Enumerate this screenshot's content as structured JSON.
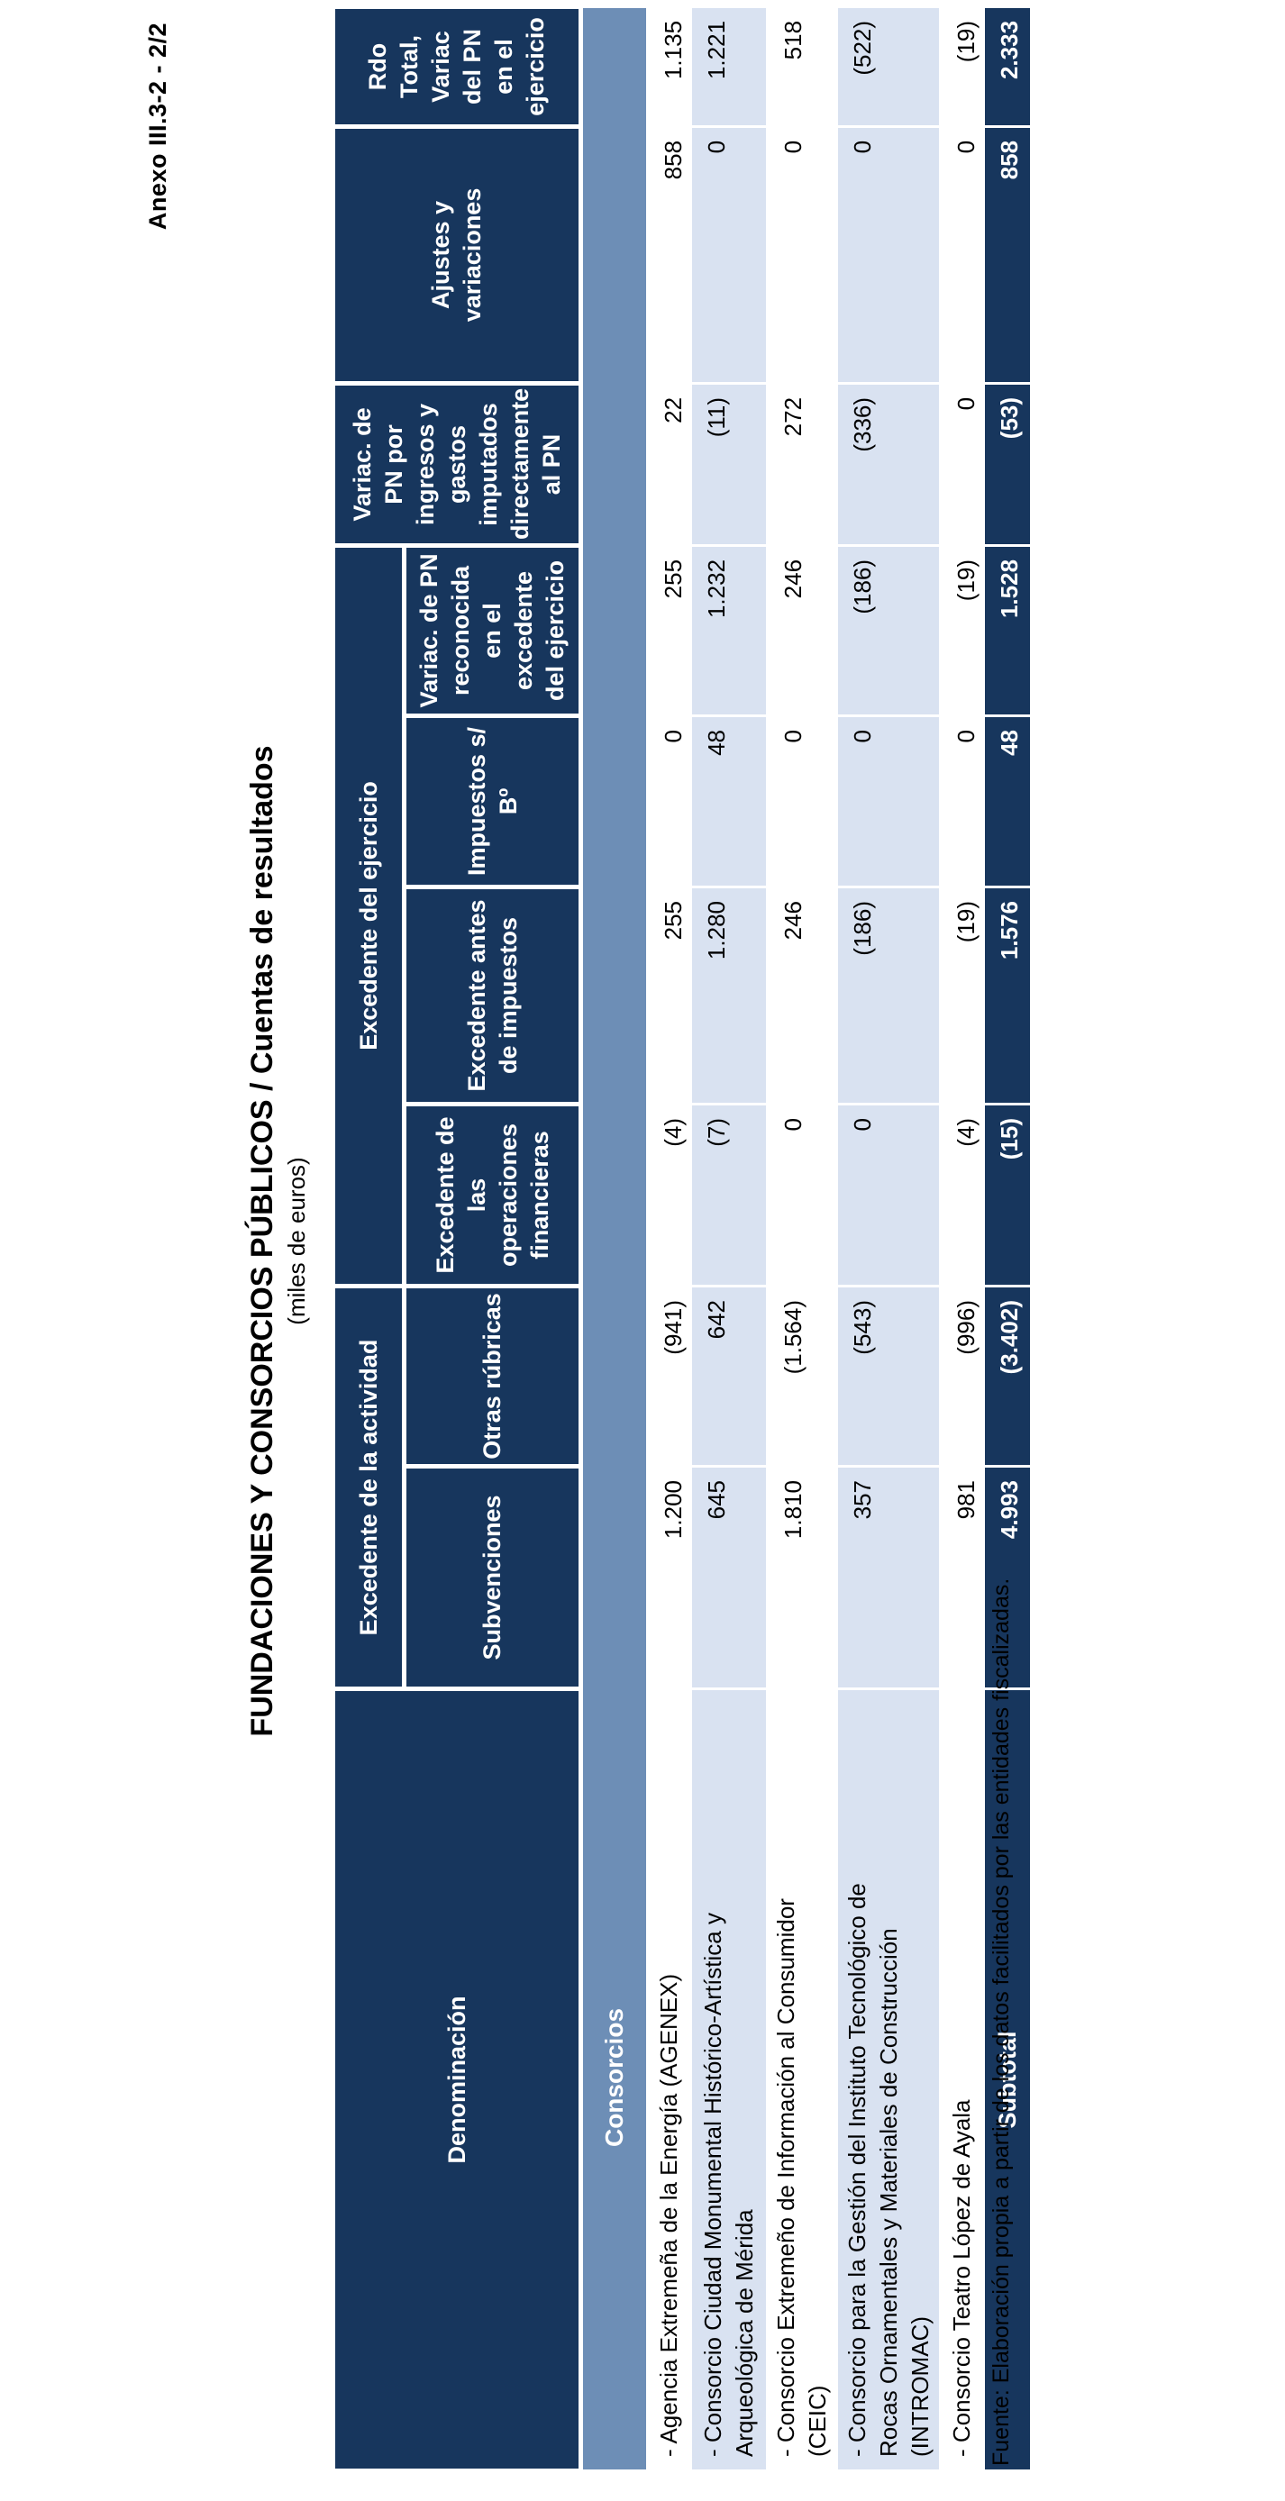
{
  "page": {
    "anexo": "Anexo III.3-2 - 2/2",
    "title": "FUNDACIONES Y CONSORCIOS PÚBLICOS  /  Cuentas de resultados",
    "subtitle": "(miles de euros)",
    "fuente": "Fuente: Elaboración propia a partir de los datos facilitados por las entidades fiscalizadas."
  },
  "colors": {
    "navy": "#17365D",
    "steel": "#6D8EB6",
    "light_row": "#D9E2F1"
  },
  "table": {
    "header": {
      "denominacion": "Denominación",
      "group_actividad": "Excedente de la actividad",
      "group_ejercicio": "Excedente del ejercicio",
      "sub_cols": [
        "Subvenciones",
        "Otras rúbricas",
        "Excedente de las operaciones financieras",
        "Excedente antes de impuestos",
        "Impuestos s/ Bº",
        "Variac. de PN reconocida en el excedente del ejercicio"
      ],
      "single_cols": [
        "Variac. de PN por ingresos y gastos imputados directamente al PN",
        "Ajustes y variaciones",
        "Rdo Total, Variac del PN en el ejercicio"
      ]
    },
    "section_label": "Consorcios",
    "rows": [
      {
        "name": "- Agencia Extremeña de la Energía (AGENEX)",
        "values": [
          "1.200",
          "(941)",
          "(4)",
          "255",
          "0",
          "255",
          "22",
          "858",
          "1.135"
        ],
        "shade": "white",
        "height": 43
      },
      {
        "name": "- Consorcio Ciudad Monumental Histórico-Artística y\nArqueológica de Mérida",
        "values": [
          "645",
          "642",
          "(7)",
          "1.280",
          "48",
          "1.232",
          "(11)",
          "0",
          "1.221"
        ],
        "shade": "light",
        "height": 85
      },
      {
        "name": "- Consorcio Extremeño de Información al Consumidor\n(CEIC)",
        "values": [
          "1.810",
          "(1.564)",
          "0",
          "246",
          "0",
          "246",
          "272",
          "0",
          "518"
        ],
        "shade": "white",
        "height": 65
      },
      {
        "name": "- Consorcio para la Gestión del Instituto Tecnológico de\nRocas Ornamentales y Materiales de Construcción\n(INTROMAC)",
        "values": [
          "357",
          "(543)",
          "0",
          "(186)",
          "0",
          "(186)",
          "(336)",
          "0",
          "(522)"
        ],
        "shade": "light",
        "height": 115
      },
      {
        "name": "- Consorcio Teatro López de Ayala",
        "values": [
          "981",
          "(996)",
          "(4)",
          "(19)",
          "0",
          "(19)",
          "0",
          "0",
          "(19)"
        ],
        "shade": "white",
        "height": 40
      }
    ],
    "subtotal": {
      "label": "Subtotal",
      "values": [
        "4.993",
        "(3.402)",
        "(15)",
        "1.576",
        "48",
        "1.528",
        "(53)",
        "858",
        "2.333"
      ],
      "height": 53
    }
  }
}
